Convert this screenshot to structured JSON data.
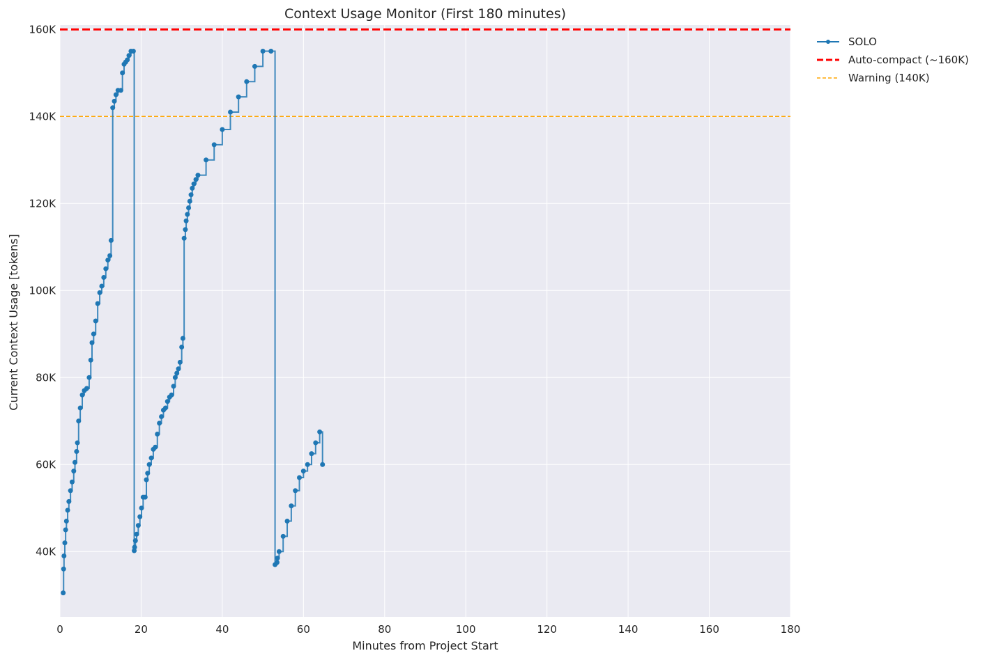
{
  "chart_data": {
    "type": "line",
    "title": "Context Usage Monitor (First 180 minutes)",
    "xlabel": "Minutes from Project Start",
    "ylabel": "Current Context Usage [tokens]",
    "xlim": [
      0,
      180
    ],
    "ylim": [
      25000,
      161000
    ],
    "x_ticks": [
      0,
      20,
      40,
      60,
      80,
      100,
      120,
      140,
      160,
      180
    ],
    "x_tick_labels": [
      "0",
      "20",
      "40",
      "60",
      "80",
      "100",
      "120",
      "140",
      "160",
      "180"
    ],
    "y_ticks": [
      40000,
      60000,
      80000,
      100000,
      120000,
      140000,
      160000
    ],
    "y_tick_labels": [
      "40K",
      "60K",
      "80K",
      "100K",
      "120K",
      "140K",
      "160K"
    ],
    "grid": true,
    "legend_position": "outside-top-right",
    "background_color": "#eaeaf2",
    "series": [
      {
        "name": "SOLO",
        "color": "#1f77b4",
        "style": "step-line-with-markers",
        "x": [
          0.8,
          0.9,
          1.0,
          1.2,
          1.4,
          1.6,
          1.9,
          2.2,
          2.6,
          3.0,
          3.4,
          3.7,
          4.1,
          4.3,
          4.6,
          5.0,
          5.5,
          6.0,
          6.6,
          7.2,
          7.6,
          7.9,
          8.3,
          8.8,
          9.3,
          9.8,
          10.3,
          10.8,
          11.3,
          11.8,
          12.3,
          12.6,
          13.0,
          13.4,
          13.8,
          14.3,
          15.0,
          15.4,
          15.8,
          16.2,
          16.6,
          17.0,
          17.5,
          18.1,
          18.3,
          18.4,
          18.6,
          18.9,
          19.3,
          19.7,
          20.1,
          20.5,
          21.0,
          21.3,
          21.6,
          22.0,
          22.5,
          23.0,
          23.5,
          24.0,
          24.5,
          25.0,
          25.5,
          26.0,
          26.5,
          27.0,
          27.5,
          28.0,
          28.4,
          28.8,
          29.2,
          29.6,
          30.0,
          30.3,
          30.6,
          30.9,
          31.1,
          31.4,
          31.7,
          32.0,
          32.3,
          32.6,
          33.0,
          33.5,
          34.0,
          36.0,
          38.0,
          40.0,
          42.0,
          44.0,
          46.0,
          48.0,
          50.0,
          52.0,
          53.0,
          53.5,
          53.6,
          54.0,
          55.0,
          56.0,
          57.0,
          58.0,
          59.0,
          60.0,
          61.0,
          62.0,
          63.0,
          64.0,
          64.7
        ],
        "y": [
          30500,
          36000,
          39000,
          42000,
          45000,
          47000,
          49500,
          51500,
          54000,
          56000,
          58500,
          60500,
          63000,
          65000,
          70000,
          73000,
          76000,
          77000,
          77500,
          80000,
          84000,
          88000,
          90000,
          93000,
          97000,
          99500,
          101000,
          103000,
          105000,
          107000,
          108000,
          111500,
          142000,
          143500,
          145000,
          146000,
          146000,
          150000,
          152000,
          152500,
          153000,
          154000,
          155000,
          155000,
          40200,
          41000,
          42500,
          44000,
          46000,
          48000,
          50000,
          52500,
          52500,
          56500,
          58000,
          60000,
          61500,
          63500,
          64000,
          67000,
          69500,
          71000,
          72500,
          73000,
          74500,
          75500,
          76000,
          78000,
          80000,
          81000,
          82000,
          83500,
          87000,
          89000,
          112000,
          114000,
          116000,
          117500,
          119000,
          120500,
          122000,
          123500,
          124500,
          125500,
          126500,
          130000,
          133500,
          137000,
          141000,
          144500,
          148000,
          151500,
          155000,
          155000,
          37000,
          37500,
          38500,
          40000,
          43500,
          47000,
          50500,
          54000,
          57000,
          58500,
          60000,
          62500,
          65000,
          67500,
          60000
        ]
      },
      {
        "name": "Auto-compact (~160K)",
        "color": "#ff0000",
        "style": "dashed-hline",
        "y": 160000
      },
      {
        "name": "Warning (140K)",
        "color": "#ffa500",
        "style": "dashed-hline",
        "y": 140000
      }
    ]
  }
}
